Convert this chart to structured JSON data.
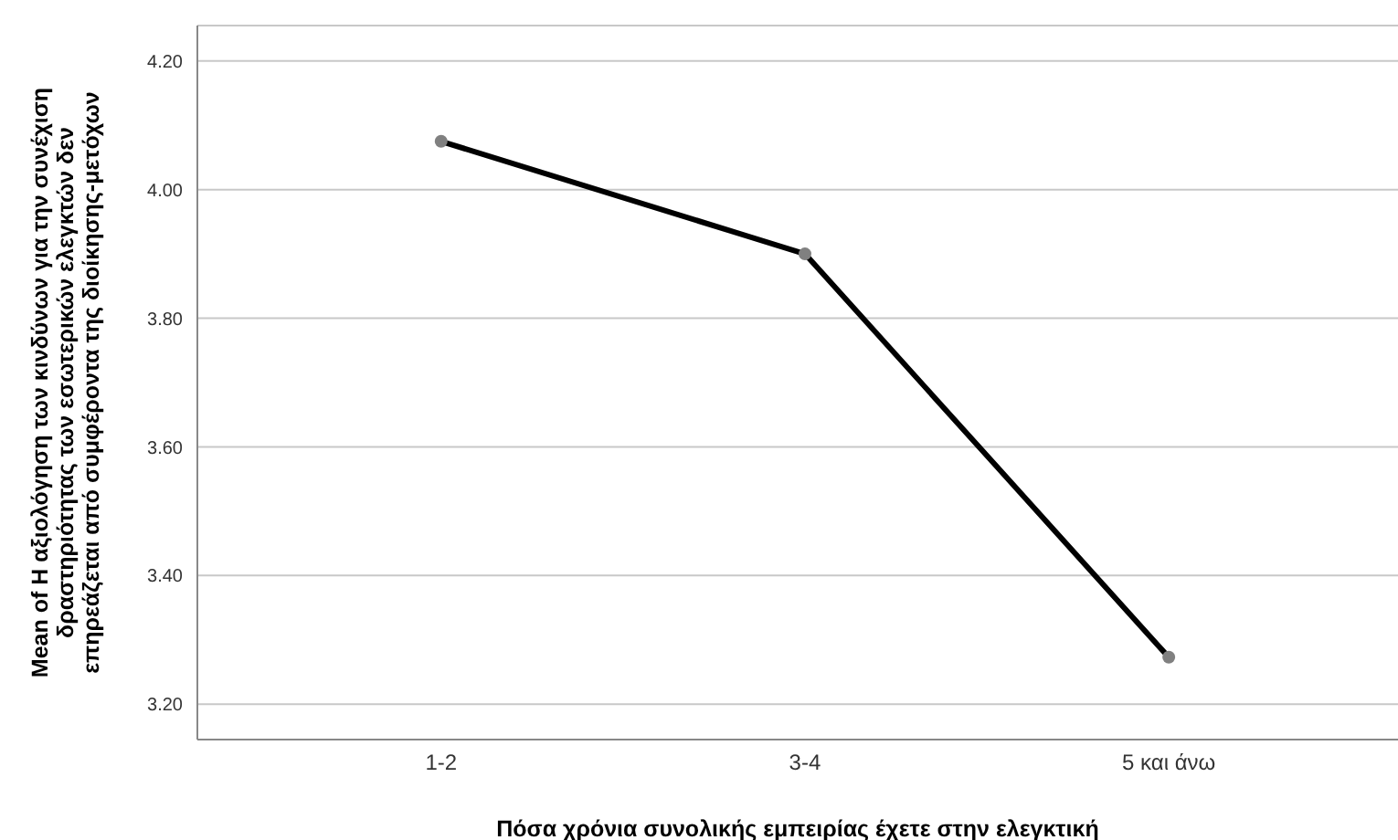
{
  "chart_data": {
    "type": "line",
    "xlabel": "Πόσα χρόνια συνολικής εμπειρίας έχετε στην ελεγκτική",
    "ylabel": "Mean of Η αξιολόγηση των κινδύνων για την συνέχιση δραστηριότητας των εσωτερικών ελεγκτών δεν επηρεάζεται από συμφέροντα της διοίκησης-μετόχων",
    "categories": [
      "1-2",
      "3-4",
      "5 και άνω"
    ],
    "series": [
      {
        "color": "#000000",
        "values": [
          4.075,
          3.9,
          3.273
        ]
      }
    ],
    "ylim": [
      3.145,
      4.255
    ],
    "yticks": [
      {
        "value": 3.2,
        "label": "3.20"
      },
      {
        "value": 3.4,
        "label": "3.40"
      },
      {
        "value": 3.6,
        "label": "3.60"
      },
      {
        "value": 3.8,
        "label": "3.80"
      },
      {
        "value": 4.0,
        "label": "4.00"
      },
      {
        "value": 4.2,
        "label": "4.20"
      }
    ],
    "grid": "y",
    "marker": "circle",
    "line_style": "solid"
  }
}
